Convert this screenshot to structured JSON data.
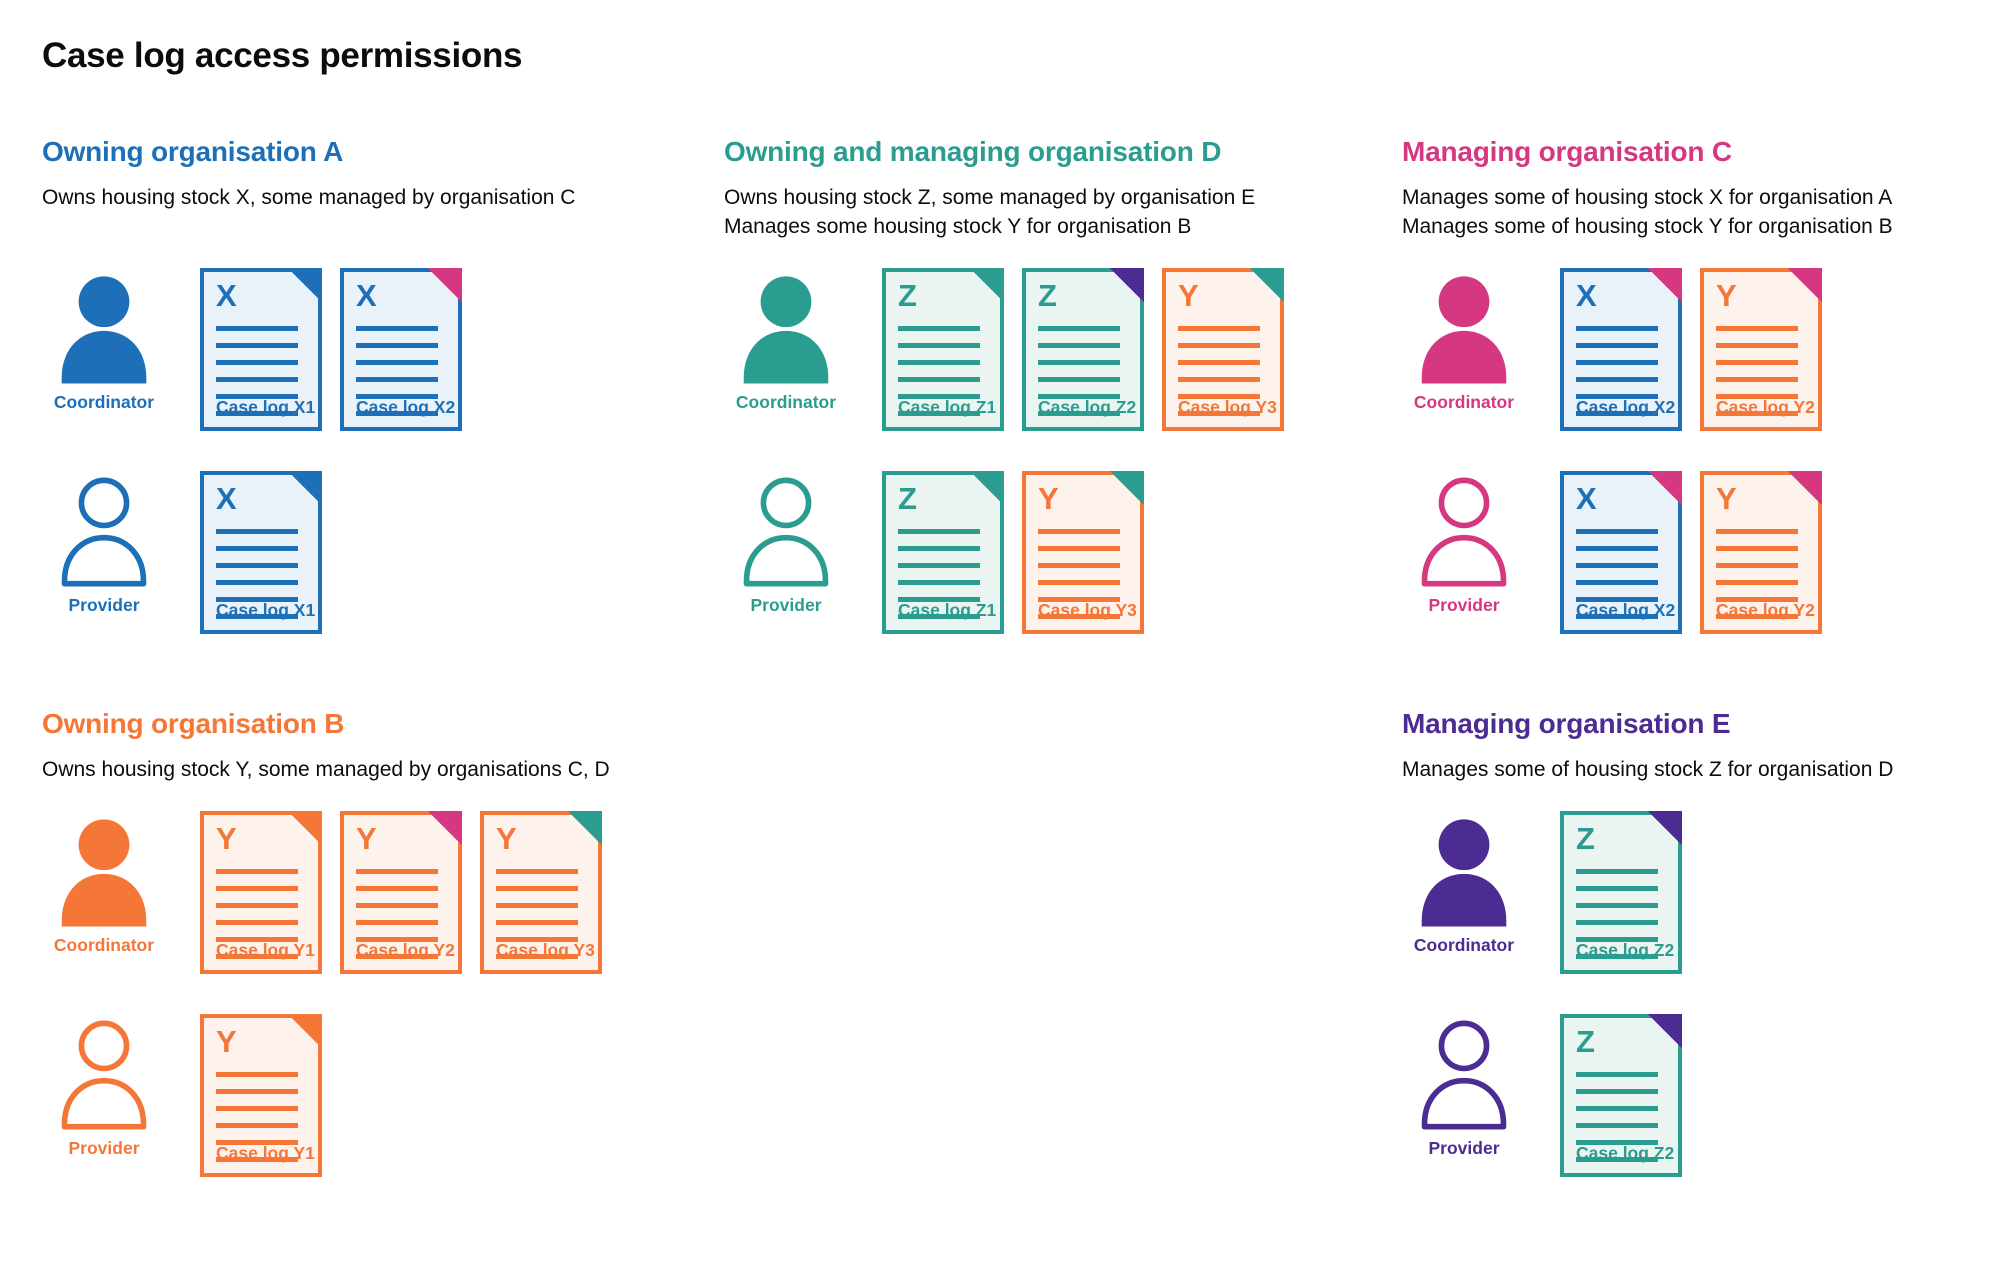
{
  "page": {
    "title": "Case log access permissions"
  },
  "palette": {
    "blue": "#1d70b8",
    "teal": "#2b9c90",
    "orange": "#f47738",
    "pink": "#d53880",
    "purple": "#4c2c92",
    "text": "#0b0c0c",
    "doc_fill_blue": "#e9f1f9",
    "doc_fill_teal": "#eaf5f2",
    "doc_fill_orange": "#fdf2ec"
  },
  "sections": [
    {
      "id": "owning-organisation-a",
      "heading": "Owning organisation A",
      "color": "blue",
      "description": [
        "Owns housing stock X, some managed by organisation C"
      ],
      "rows": [
        {
          "role": "Coordinator",
          "person": "filled",
          "docs": [
            {
              "letter": "X",
              "label": "Case log X1",
              "doc_color": "blue",
              "corner_color": "blue"
            },
            {
              "letter": "X",
              "label": "Case log X2",
              "doc_color": "blue",
              "corner_color": "pink"
            }
          ]
        },
        {
          "role": "Provider",
          "person": "outline",
          "docs": [
            {
              "letter": "X",
              "label": "Case log X1",
              "doc_color": "blue",
              "corner_color": "blue"
            }
          ]
        }
      ]
    },
    {
      "id": "owning-and-managing-organisation-d",
      "heading": "Owning and managing organisation D",
      "color": "teal",
      "description": [
        "Owns housing stock Z, some managed by organisation E",
        "Manages some housing stock Y for organisation B"
      ],
      "rows": [
        {
          "role": "Coordinator",
          "person": "filled",
          "docs": [
            {
              "letter": "Z",
              "label": "Case log Z1",
              "doc_color": "teal",
              "corner_color": "teal"
            },
            {
              "letter": "Z",
              "label": "Case log Z2",
              "doc_color": "teal",
              "corner_color": "purple"
            },
            {
              "letter": "Y",
              "label": "Case log Y3",
              "doc_color": "orange",
              "corner_color": "teal"
            }
          ]
        },
        {
          "role": "Provider",
          "person": "outline",
          "docs": [
            {
              "letter": "Z",
              "label": "Case log Z1",
              "doc_color": "teal",
              "corner_color": "teal"
            },
            {
              "letter": "Y",
              "label": "Case log Y3",
              "doc_color": "orange",
              "corner_color": "teal"
            }
          ]
        }
      ]
    },
    {
      "id": "managing-organisation-c",
      "heading": "Managing organisation C",
      "color": "pink",
      "description": [
        "Manages some of housing stock X for organisation A",
        "Manages some of housing stock Y for organisation B"
      ],
      "rows": [
        {
          "role": "Coordinator",
          "person": "filled",
          "docs": [
            {
              "letter": "X",
              "label": "Case log X2",
              "doc_color": "blue",
              "corner_color": "pink"
            },
            {
              "letter": "Y",
              "label": "Case log Y2",
              "doc_color": "orange",
              "corner_color": "pink"
            }
          ]
        },
        {
          "role": "Provider",
          "person": "outline",
          "docs": [
            {
              "letter": "X",
              "label": "Case log X2",
              "doc_color": "blue",
              "corner_color": "pink"
            },
            {
              "letter": "Y",
              "label": "Case log Y2",
              "doc_color": "orange",
              "corner_color": "pink"
            }
          ]
        }
      ]
    },
    {
      "id": "owning-organisation-b",
      "heading": "Owning organisation B",
      "color": "orange",
      "description": [
        "Owns housing stock Y, some managed by organisations C, D"
      ],
      "rows": [
        {
          "role": "Coordinator",
          "person": "filled",
          "docs": [
            {
              "letter": "Y",
              "label": "Case log Y1",
              "doc_color": "orange",
              "corner_color": "orange"
            },
            {
              "letter": "Y",
              "label": "Case log Y2",
              "doc_color": "orange",
              "corner_color": "pink"
            },
            {
              "letter": "Y",
              "label": "Case log Y3",
              "doc_color": "orange",
              "corner_color": "teal"
            }
          ]
        },
        {
          "role": "Provider",
          "person": "outline",
          "docs": [
            {
              "letter": "Y",
              "label": "Case log Y1",
              "doc_color": "orange",
              "corner_color": "orange"
            }
          ]
        }
      ]
    },
    {
      "id": "managing-organisation-e",
      "heading": "Managing organisation E",
      "color": "purple",
      "description": [
        "Manages some of housing stock Z for organisation D"
      ],
      "rows": [
        {
          "role": "Coordinator",
          "person": "filled",
          "docs": [
            {
              "letter": "Z",
              "label": "Case log Z2",
              "doc_color": "teal",
              "corner_color": "purple"
            }
          ]
        },
        {
          "role": "Provider",
          "person": "outline",
          "docs": [
            {
              "letter": "Z",
              "label": "Case log Z2",
              "doc_color": "teal",
              "corner_color": "purple"
            }
          ]
        }
      ]
    }
  ]
}
